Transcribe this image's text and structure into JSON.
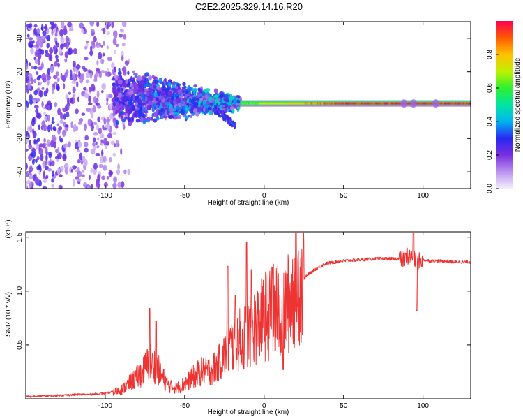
{
  "title": "C2E2.2025.329.14.16.R20",
  "chart_data": [
    {
      "type": "heatmap",
      "title": "C2E2.2025.329.14.16.R20",
      "xlabel": "Height of straight line (km)",
      "ylabel": "Frequency (Hz)",
      "xlim": [
        -150,
        130
      ],
      "ylim": [
        -50,
        50
      ],
      "xticks": [
        -100,
        -50,
        0,
        50,
        100
      ],
      "yticks": [
        -40,
        -20,
        0,
        20,
        40
      ],
      "colorbar": {
        "label": "Normalized spectral amplitude",
        "range": [
          0,
          1
        ],
        "ticks": [
          "0.0",
          "0.2",
          "0.4",
          "0.6",
          "0.8"
        ],
        "tick_values": [
          0,
          0.2,
          0.4,
          0.6,
          0.8
        ],
        "stops": [
          {
            "v": 0.0,
            "c": "#f4eefc"
          },
          {
            "v": 0.08,
            "c": "#c8a6f2"
          },
          {
            "v": 0.2,
            "c": "#7a2fe0"
          },
          {
            "v": 0.3,
            "c": "#2828f0"
          },
          {
            "v": 0.4,
            "c": "#00b4f0"
          },
          {
            "v": 0.5,
            "c": "#00e6a0"
          },
          {
            "v": 0.6,
            "c": "#30f030"
          },
          {
            "v": 0.7,
            "c": "#c0f000"
          },
          {
            "v": 0.8,
            "c": "#ffc000"
          },
          {
            "v": 0.9,
            "c": "#ff5a00"
          },
          {
            "v": 1.0,
            "c": "#ff0050"
          }
        ]
      },
      "description_features": {
        "noise_region_x": [
          -150,
          -95
        ],
        "broad_band_x": [
          -95,
          -15
        ],
        "narrow_line_x": [
          -15,
          130
        ],
        "line_frequency_hz": 1
      }
    },
    {
      "type": "line",
      "xlabel": "Height of straight line (km)",
      "ylabel": "SNR (10 * v/v)",
      "scale_label": "(x10⁴)",
      "xlim": [
        -150,
        130
      ],
      "ylim": [
        0,
        1.55
      ],
      "xticks": [
        -100,
        -50,
        0,
        50,
        100
      ],
      "yticks": [
        0.5,
        1.0,
        1.5
      ],
      "ytick_labels": [
        "0.5",
        "1.0",
        "1.5"
      ],
      "line_color": "#ee3333",
      "series": [
        {
          "name": "SNR",
          "x": [
            -150,
            -130,
            -115,
            -110,
            -100,
            -90,
            -85,
            -80,
            -75,
            -72,
            -70,
            -67,
            -65,
            -60,
            -55,
            -50,
            -45,
            -40,
            -35,
            -30,
            -26,
            -23,
            -20,
            -15,
            -10,
            -8,
            -5,
            -2,
            0,
            5,
            8,
            10,
            12,
            15,
            18,
            20,
            25,
            30,
            35,
            40,
            45,
            50,
            60,
            70,
            80,
            85,
            88,
            90,
            92,
            95,
            98,
            100,
            105,
            110,
            120,
            130
          ],
          "values": [
            0.02,
            0.03,
            0.04,
            0.04,
            0.05,
            0.08,
            0.14,
            0.2,
            0.28,
            0.35,
            0.32,
            0.28,
            0.22,
            0.12,
            0.1,
            0.14,
            0.2,
            0.25,
            0.26,
            0.3,
            0.38,
            0.45,
            0.5,
            0.55,
            0.6,
            0.65,
            0.68,
            0.72,
            0.74,
            0.8,
            0.85,
            0.75,
            0.8,
            0.88,
            0.98,
            1.05,
            1.12,
            1.18,
            1.23,
            1.26,
            1.27,
            1.28,
            1.29,
            1.3,
            1.3,
            1.3,
            1.29,
            1.31,
            1.32,
            1.28,
            1.28,
            1.29,
            1.28,
            1.28,
            1.27,
            1.27
          ],
          "spikes": [
            {
              "x": -72,
              "y": 0.84
            },
            {
              "x": -68,
              "y": 0.72
            },
            {
              "x": -23,
              "y": 1.23
            },
            {
              "x": -18,
              "y": 0.96
            },
            {
              "x": -11,
              "y": 1.45
            },
            {
              "x": -8,
              "y": 1.2
            },
            {
              "x": 1,
              "y": 1.18
            },
            {
              "x": 5,
              "y": 1.22
            },
            {
              "x": 7,
              "y": 0.45
            },
            {
              "x": 12,
              "y": 0.27
            },
            {
              "x": 90,
              "y": 1.4
            },
            {
              "x": 94,
              "y": 1.55
            },
            {
              "x": 96,
              "y": 0.82
            }
          ]
        }
      ]
    }
  ]
}
